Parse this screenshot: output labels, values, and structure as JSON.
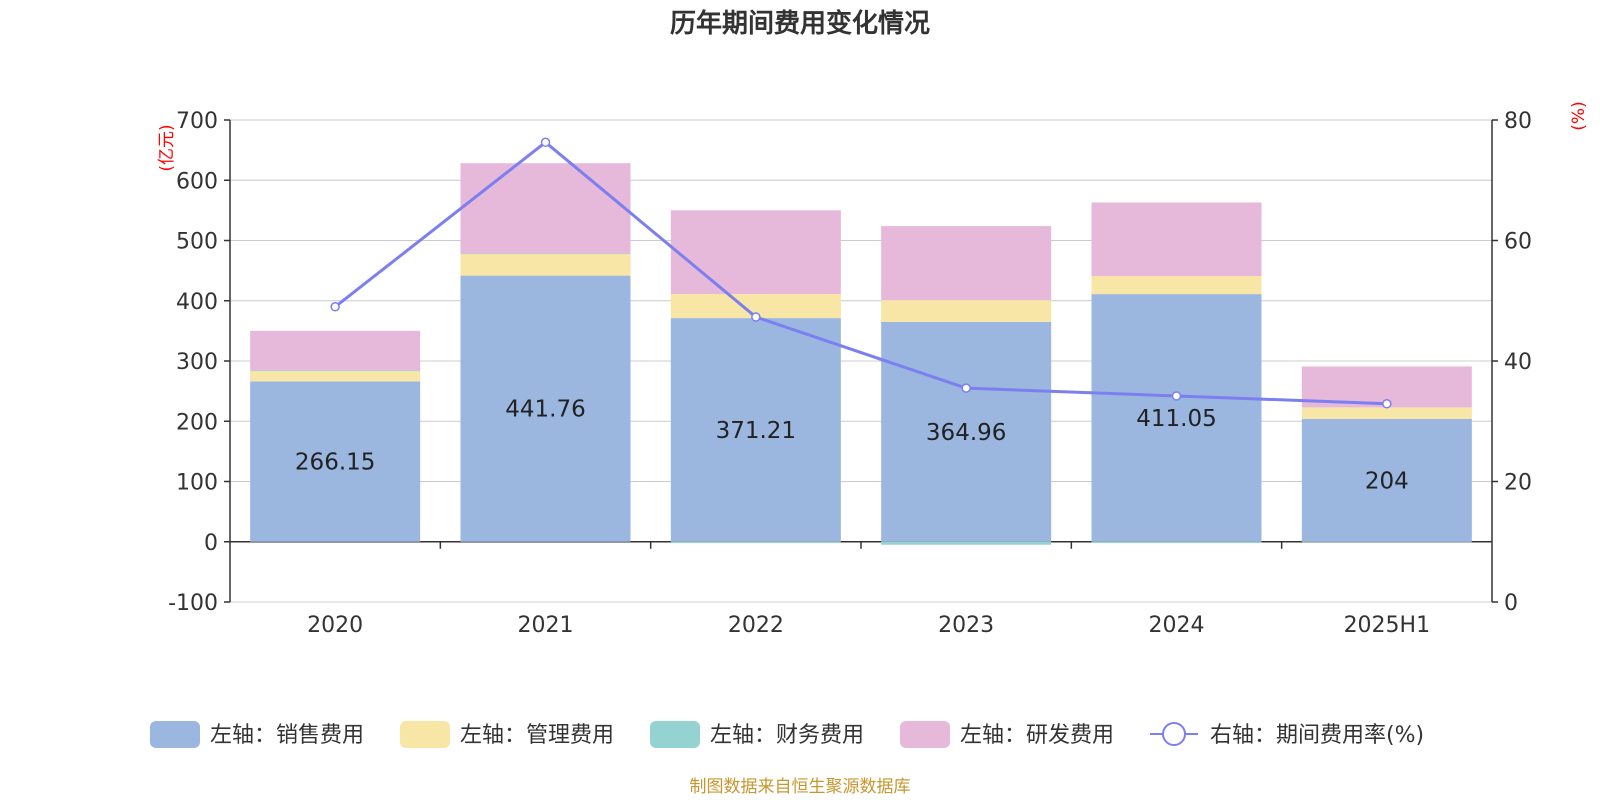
{
  "chart_data": {
    "type": "bar",
    "title": "历年期间费用变化情况",
    "categories": [
      "2020",
      "2021",
      "2022",
      "2023",
      "2024",
      "2025H1"
    ],
    "y_left": {
      "unit_label": "(亿元)",
      "ylim": [
        -100,
        700
      ],
      "ticks": [
        -100,
        0,
        100,
        200,
        300,
        400,
        500,
        600,
        700
      ]
    },
    "y_right": {
      "unit_label": "(%)",
      "ylim": [
        0,
        80
      ],
      "ticks": [
        0,
        20,
        40,
        60,
        80
      ]
    },
    "series": [
      {
        "name": "左轴：销售费用",
        "kind": "stacked-bar",
        "color": "#9bb7e0",
        "values": [
          266.15,
          441.76,
          371.21,
          364.96,
          411.05,
          204
        ],
        "show_labels": true
      },
      {
        "name": "左轴：管理费用",
        "kind": "stacked-bar",
        "color": "#f7e6a6",
        "values": [
          17,
          36,
          40,
          36,
          30,
          19
        ]
      },
      {
        "name": "左轴：财务费用",
        "kind": "stacked-bar",
        "color": "#95d3d3",
        "values": [
          1,
          0.5,
          -2,
          -5,
          -2,
          -0.5
        ]
      },
      {
        "name": "左轴：研发费用",
        "kind": "stacked-bar",
        "color": "#e6b8d9",
        "values": [
          66,
          150,
          139,
          123,
          122,
          68
        ]
      },
      {
        "name": "右轴：期间费用率(%)",
        "kind": "line",
        "axis": "right",
        "color": "#7b7ff0",
        "values": [
          49,
          76.3,
          47.3,
          35.5,
          34.2,
          32.9
        ]
      }
    ],
    "grid": true,
    "legend_position": "bottom"
  },
  "footer": {
    "source": "制图数据来自恒生聚源数据库"
  }
}
